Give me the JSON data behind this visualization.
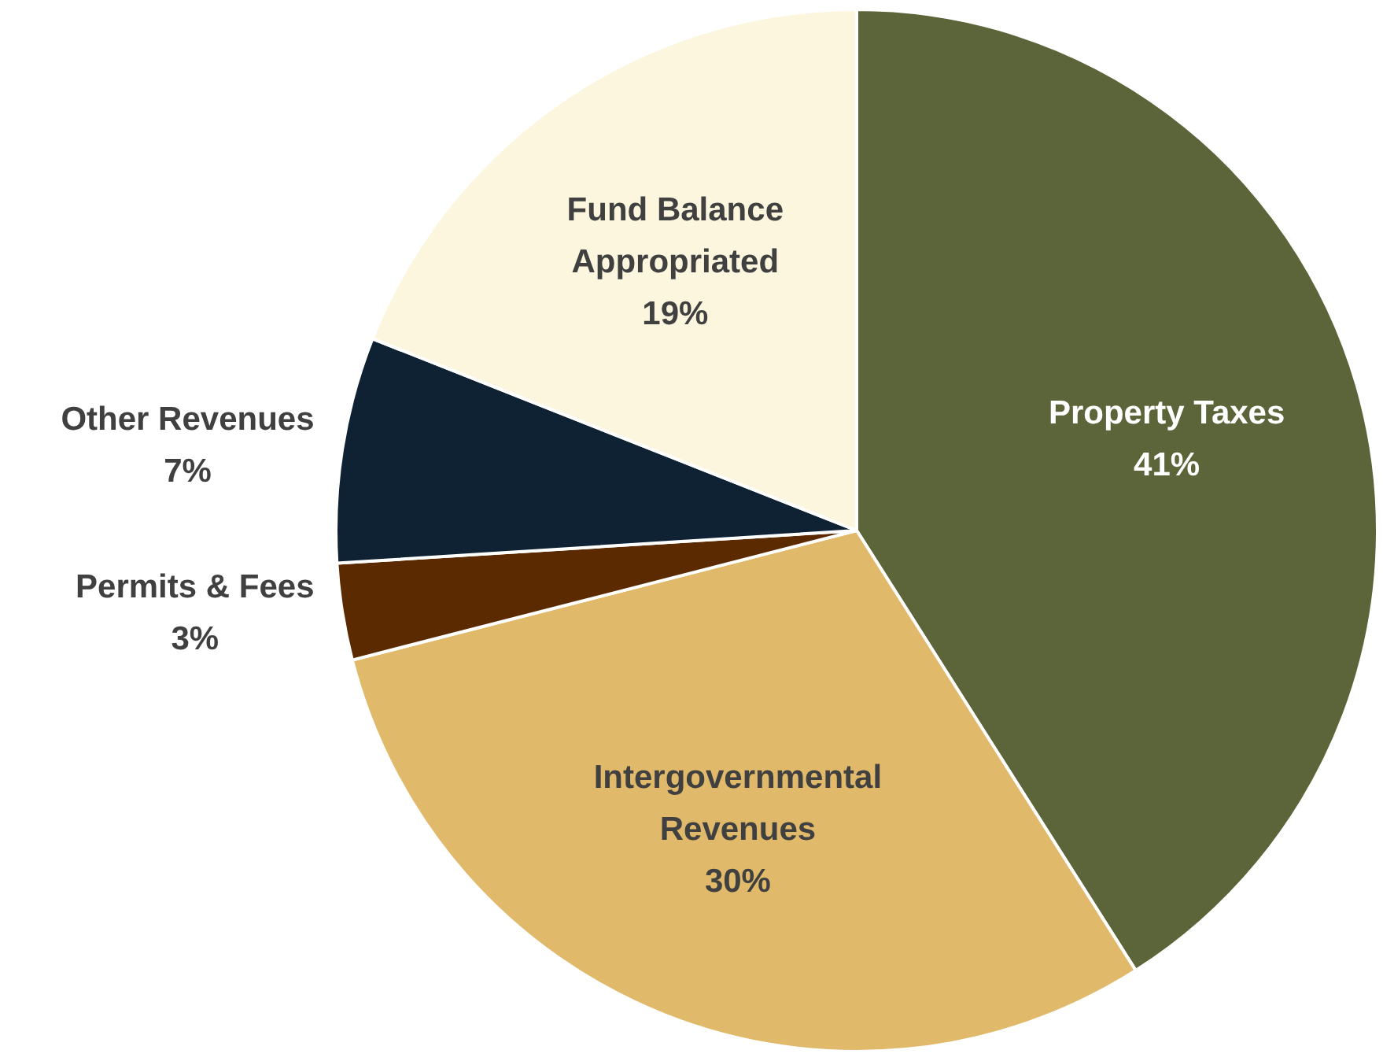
{
  "chart_data": {
    "type": "pie",
    "categories": [
      "Property Taxes",
      "Intergovernmental Revenues",
      "Permits & Fees",
      "Other Revenues",
      "Fund Balance Appropriated"
    ],
    "values": [
      41,
      30,
      3,
      7,
      19
    ],
    "value_labels": [
      "41%",
      "30%",
      "3%",
      "7%",
      "19%"
    ],
    "colors": [
      "#5c6439",
      "#e0b96a",
      "#5c2a00",
      "#0f2233",
      "#fdf6de"
    ],
    "legend": false
  }
}
